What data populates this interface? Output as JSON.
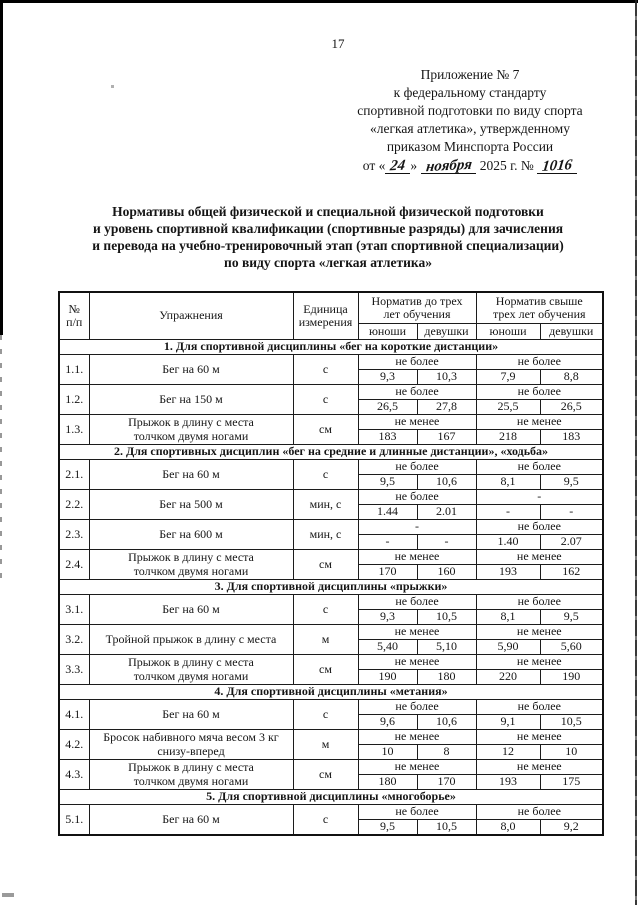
{
  "colors": {
    "ink": "#151515",
    "paper": "#ffffff"
  },
  "page": {
    "number": "17",
    "appendix": {
      "lines": [
        "Приложение № 7",
        "к федеральному стандарту",
        "спортивной подготовки по виду спорта",
        "«легкая атлетика», утвержденному",
        "приказом Минспорта России"
      ],
      "date_line": {
        "prefix": "от «",
        "day": "24",
        "close_quote": "»",
        "month": "ноября",
        "year_part": "2025 г. №",
        "number": "1016"
      }
    },
    "title_lines": [
      "Нормативы общей физической и специальной физической подготовки",
      "и уровень спортивной квалификации (спортивные разряды) для зачисления",
      "и перевода на учебно-тренировочный этап (этап спортивной специализации)",
      "по виду спорта «легкая атлетика»"
    ]
  },
  "table": {
    "header": {
      "col_num": [
        "№",
        "п/п"
      ],
      "col_exercise": "Упражнения",
      "col_unit": [
        "Единица",
        "измерения"
      ],
      "col_group1": [
        "Норматив до трех",
        "лет обучения"
      ],
      "col_group2": [
        "Норматив свыше",
        "трех лет обучения"
      ],
      "col_boys": "юноши",
      "col_girls": "девушки"
    },
    "sections": [
      {
        "title": "1. Для спортивной дисциплины «бег на короткие дистанции»",
        "rows": [
          {
            "num": "1.1.",
            "exercise": [
              "Бег на 60 м"
            ],
            "unit": "с",
            "group1": {
              "label": "не более",
              "boys": "9,3",
              "girls": "10,3"
            },
            "group2": {
              "label": "не более",
              "boys": "7,9",
              "girls": "8,8"
            }
          },
          {
            "num": "1.2.",
            "exercise": [
              "Бег на 150 м"
            ],
            "unit": "с",
            "group1": {
              "label": "не более",
              "boys": "26,5",
              "girls": "27,8"
            },
            "group2": {
              "label": "не более",
              "boys": "25,5",
              "girls": "26,5"
            }
          },
          {
            "num": "1.3.",
            "exercise": [
              "Прыжок в длину с места",
              "толчком двумя ногами"
            ],
            "unit": "см",
            "group1": {
              "label": "не менее",
              "boys": "183",
              "girls": "167"
            },
            "group2": {
              "label": "не менее",
              "boys": "218",
              "girls": "183"
            }
          }
        ]
      },
      {
        "title": "2. Для спортивных дисциплин «бег на средние и длинные дистанции», «ходьба»",
        "rows": [
          {
            "num": "2.1.",
            "exercise": [
              "Бег на 60 м"
            ],
            "unit": "с",
            "group1": {
              "label": "не более",
              "boys": "9,5",
              "girls": "10,6"
            },
            "group2": {
              "label": "не более",
              "boys": "8,1",
              "girls": "9,5"
            }
          },
          {
            "num": "2.2.",
            "exercise": [
              "Бег на 500 м"
            ],
            "unit": "мин, с",
            "group1": {
              "label": "не более",
              "boys": "1.44",
              "girls": "2.01"
            },
            "group2": {
              "label": "-",
              "boys": "-",
              "girls": "-"
            }
          },
          {
            "num": "2.3.",
            "exercise": [
              "Бег на 600 м"
            ],
            "unit": "мин, с",
            "group1": {
              "label": "-",
              "boys": "-",
              "girls": "-"
            },
            "group2": {
              "label": "не более",
              "boys": "1.40",
              "girls": "2.07"
            }
          },
          {
            "num": "2.4.",
            "exercise": [
              "Прыжок в длину с места",
              "толчком двумя ногами"
            ],
            "unit": "см",
            "group1": {
              "label": "не менее",
              "boys": "170",
              "girls": "160"
            },
            "group2": {
              "label": "не менее",
              "boys": "193",
              "girls": "162"
            }
          }
        ]
      },
      {
        "title": "3. Для спортивной дисциплины «прыжки»",
        "rows": [
          {
            "num": "3.1.",
            "exercise": [
              "Бег на 60 м"
            ],
            "unit": "с",
            "group1": {
              "label": "не более",
              "boys": "9,3",
              "girls": "10,5"
            },
            "group2": {
              "label": "не более",
              "boys": "8,1",
              "girls": "9,5"
            }
          },
          {
            "num": "3.2.",
            "exercise": [
              "Тройной прыжок в длину с места"
            ],
            "unit": "м",
            "group1": {
              "label": "не менее",
              "boys": "5,40",
              "girls": "5,10"
            },
            "group2": {
              "label": "не менее",
              "boys": "5,90",
              "girls": "5,60"
            }
          },
          {
            "num": "3.3.",
            "exercise": [
              "Прыжок в длину с места",
              "толчком двумя ногами"
            ],
            "unit": "см",
            "group1": {
              "label": "не менее",
              "boys": "190",
              "girls": "180"
            },
            "group2": {
              "label": "не менее",
              "boys": "220",
              "girls": "190"
            }
          }
        ]
      },
      {
        "title": "4. Для спортивной дисциплины «метания»",
        "rows": [
          {
            "num": "4.1.",
            "exercise": [
              "Бег на 60 м"
            ],
            "unit": "с",
            "group1": {
              "label": "не более",
              "boys": "9,6",
              "girls": "10,6"
            },
            "group2": {
              "label": "не более",
              "boys": "9,1",
              "girls": "10,5"
            }
          },
          {
            "num": "4.2.",
            "exercise": [
              "Бросок набивного мяча весом 3 кг",
              "снизу-вперед"
            ],
            "unit": "м",
            "group1": {
              "label": "не менее",
              "boys": "10",
              "girls": "8"
            },
            "group2": {
              "label": "не менее",
              "boys": "12",
              "girls": "10"
            }
          },
          {
            "num": "4.3.",
            "exercise": [
              "Прыжок в длину с места",
              "толчком двумя ногами"
            ],
            "unit": "см",
            "group1": {
              "label": "не менее",
              "boys": "180",
              "girls": "170"
            },
            "group2": {
              "label": "не менее",
              "boys": "193",
              "girls": "175"
            }
          }
        ]
      },
      {
        "title": "5. Для спортивной дисциплины «многоборье»",
        "rows": [
          {
            "num": "5.1.",
            "exercise": [
              "Бег на 60 м"
            ],
            "unit": "с",
            "group1": {
              "label": "не более",
              "boys": "9,5",
              "girls": "10,5"
            },
            "group2": {
              "label": "не более",
              "boys": "8,0",
              "girls": "9,2"
            }
          }
        ]
      }
    ]
  }
}
